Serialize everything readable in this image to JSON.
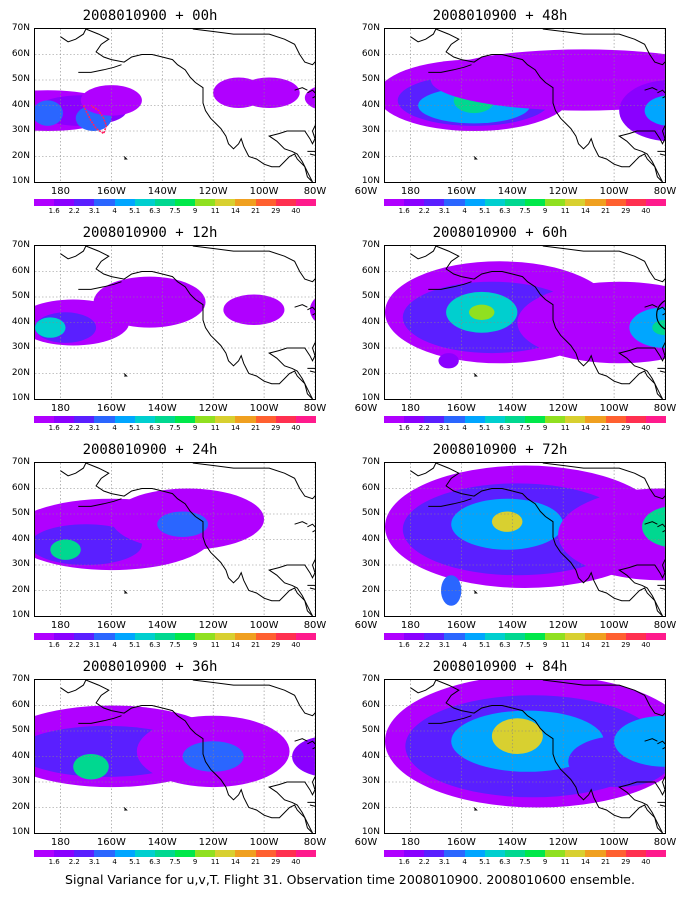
{
  "panels": [
    {
      "title": "2008010900 + 00h"
    },
    {
      "title": "2008010900 + 48h"
    },
    {
      "title": "2008010900 + 12h"
    },
    {
      "title": "2008010900 + 60h"
    },
    {
      "title": "2008010900 + 24h"
    },
    {
      "title": "2008010900 + 72h"
    },
    {
      "title": "2008010900 + 36h"
    },
    {
      "title": "2008010900 + 84h"
    }
  ],
  "lat_labels": [
    "70N",
    "60N",
    "50N",
    "40N",
    "30N",
    "20N",
    "10N"
  ],
  "lon_labels": [
    "180",
    "160W",
    "140W",
    "120W",
    "100W",
    "80W",
    "60W"
  ],
  "colorbar": {
    "labels": [
      "1.6",
      "2.2",
      "3.1",
      "4",
      "5.1",
      "6.3",
      "7.5",
      "9",
      "11",
      "14",
      "21",
      "29",
      "40"
    ],
    "colors": [
      "#b000ff",
      "#8a00ff",
      "#5a1fff",
      "#2a66ff",
      "#00a6ff",
      "#00cfcf",
      "#00d890",
      "#00e84a",
      "#90e020",
      "#d8d030",
      "#f0a020",
      "#ff6030",
      "#ff3050",
      "#ff1a8c"
    ]
  },
  "caption": "Signal Variance for u,v,T. Flight 31. Observation time 2008010900. 2008010600 ensemble."
}
